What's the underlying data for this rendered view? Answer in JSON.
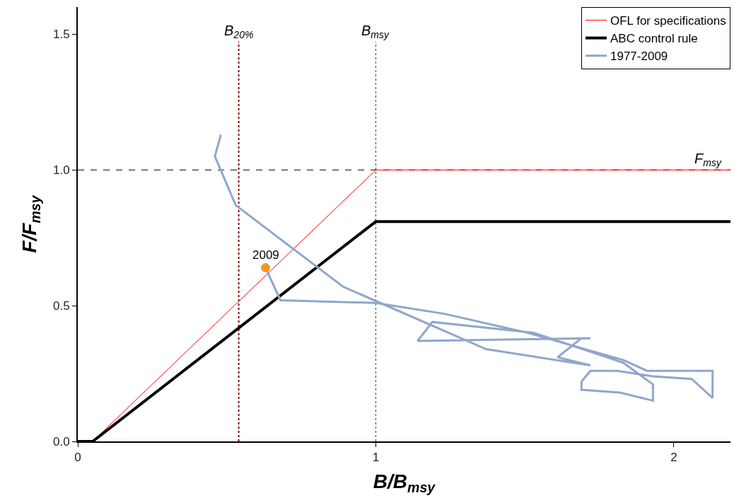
{
  "chart_data": {
    "type": "line",
    "xlabel": "B/B$_{msy}$",
    "ylabel": "F/F$_{msy}$",
    "xlim": [
      0,
      2.19
    ],
    "ylim": [
      0,
      1.6
    ],
    "xticks": [
      0,
      1,
      2
    ],
    "yticks": [
      {
        "value": 0,
        "label": "0.0"
      },
      {
        "value": 0.5,
        "label": "0.5"
      },
      {
        "value": 1,
        "label": "1.0"
      },
      {
        "value": 1.5,
        "label": "1.5"
      }
    ],
    "grid": false,
    "legend": "top right",
    "marker": "none",
    "line_style": "solid",
    "series": [
      {
        "name": "OFL for specifications",
        "color": "#ff0000",
        "x": [
          0,
          0.05,
          1,
          2.19
        ],
        "values": [
          0,
          0,
          1,
          1
        ]
      },
      {
        "name": "ABC control rule",
        "color": "#000000",
        "x": [
          0,
          0.05,
          1,
          2.19
        ],
        "values": [
          0,
          0,
          0.81,
          0.81
        ]
      },
      {
        "name": "1977-2009",
        "color": "#8ea7cc",
        "x": [
          0.48,
          0.46,
          0.53,
          0.89,
          1.37,
          1.72,
          1.61,
          1.69,
          1.72,
          1.14,
          1.19,
          1.53,
          1.83,
          1.93,
          1.93,
          1.82,
          1.69,
          1.69,
          1.72,
          1.81,
          1.93,
          2.06,
          2.13,
          2.13,
          1.91,
          1.83,
          1.51,
          1.23,
          1.0,
          0.68,
          0.63
        ],
        "values": [
          1.13,
          1.05,
          0.87,
          0.57,
          0.34,
          0.28,
          0.31,
          0.38,
          0.38,
          0.37,
          0.44,
          0.4,
          0.29,
          0.21,
          0.15,
          0.18,
          0.19,
          0.22,
          0.26,
          0.26,
          0.24,
          0.23,
          0.16,
          0.26,
          0.26,
          0.3,
          0.4,
          0.47,
          0.51,
          0.52,
          0.64
        ]
      },
      {
        "type": "scatter",
        "marker": "circle",
        "color": "#ff9900",
        "x": [
          0.63
        ],
        "values": [
          0.64
        ]
      }
    ],
    "ref_lines": [
      {
        "axis": "x",
        "value": 0.54,
        "label": "B$_{20%}$",
        "color": "#8b0000",
        "line_style": "dotted"
      },
      {
        "axis": "x",
        "value": 1,
        "label": "B$_{msy}$",
        "color": "#404040",
        "line_style": "dotted"
      },
      {
        "axis": "y",
        "value": 1,
        "label": "F$_{msy}$",
        "color": "#000000",
        "line_style": "dashed"
      }
    ],
    "annotations": [
      {
        "text": "2009",
        "x": 0.63,
        "y": 0.64
      }
    ]
  }
}
